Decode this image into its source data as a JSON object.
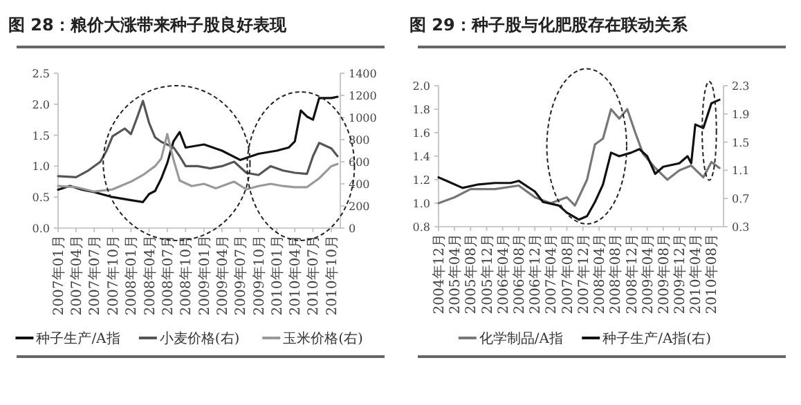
{
  "chart_data": [
    {
      "type": "line",
      "title": "图 28：粮价大涨带来种子股良好表现",
      "legend": "bottom",
      "grid": false,
      "xlim": [
        "2007-01-01",
        "2010-11-15"
      ],
      "xticks": [
        {
          "value": "2007-01",
          "label": "2007年01月"
        },
        {
          "value": "2007-04",
          "label": "2007年04月"
        },
        {
          "value": "2007-07",
          "label": "2007年07月"
        },
        {
          "value": "2007-10",
          "label": "2007年10月"
        },
        {
          "value": "2008-01",
          "label": "2008年01月"
        },
        {
          "value": "2008-04",
          "label": "2008年04月"
        },
        {
          "value": "2008-07",
          "label": "2008年07月"
        },
        {
          "value": "2008-10",
          "label": "2008年10月"
        },
        {
          "value": "2009-01",
          "label": "2009年01月"
        },
        {
          "value": "2009-04",
          "label": "2009年04月"
        },
        {
          "value": "2009-07",
          "label": "2009年07月"
        },
        {
          "value": "2009-10",
          "label": "2009年10月"
        },
        {
          "value": "2010-01",
          "label": "2010年01月"
        },
        {
          "value": "2010-04",
          "label": "2010年04月"
        },
        {
          "value": "2010-07",
          "label": "2010年07月"
        },
        {
          "value": "2010-10",
          "label": "2010年10月"
        }
      ],
      "ylim": [
        0,
        2.5
      ],
      "yticks": [
        {
          "value": 0,
          "label": "0.0"
        },
        {
          "value": 0.5,
          "label": "0.5"
        },
        {
          "value": 1,
          "label": "1.0"
        },
        {
          "value": 1.5,
          "label": "1.5"
        },
        {
          "value": 2,
          "label": "2.0"
        },
        {
          "value": 2.5,
          "label": "2.5"
        }
      ],
      "y2lim": [
        0,
        1400
      ],
      "y2ticks": [
        0,
        200,
        400,
        600,
        800,
        1000,
        1200,
        1400
      ],
      "series": [
        {
          "name": "种子生产/A指",
          "color": "#111111",
          "x": [
            "2007-01",
            "2007-03",
            "2007-05",
            "2007-07",
            "2007-10",
            "2008-01",
            "2008-03",
            "2008-04",
            "2008-05",
            "2008-06",
            "2008-07",
            "2008-08",
            "2008-09",
            "2008-10",
            "2009-01",
            "2009-04",
            "2009-07",
            "2009-10",
            "2010-01",
            "2010-03",
            "2010-04",
            "2010-05",
            "2010-06",
            "2010-07",
            "2010-08",
            "2010-10",
            "2010-11"
          ],
          "values": [
            0.62,
            0.68,
            0.62,
            0.58,
            0.5,
            0.45,
            0.42,
            0.55,
            0.6,
            0.8,
            1.05,
            1.4,
            1.55,
            1.3,
            1.35,
            1.25,
            1.1,
            1.2,
            1.25,
            1.3,
            1.4,
            1.9,
            1.8,
            1.75,
            2.1,
            2.1,
            2.12
          ]
        },
        {
          "name": "小麦价格(右)",
          "color": "#555555",
          "axis": "y2",
          "x": [
            "2007-01",
            "2007-04",
            "2007-06",
            "2007-08",
            "2007-09",
            "2007-10",
            "2007-12",
            "2008-01",
            "2008-02",
            "2008-03",
            "2008-04",
            "2008-05",
            "2008-06",
            "2008-08",
            "2008-09",
            "2008-10",
            "2008-12",
            "2009-02",
            "2009-04",
            "2009-06",
            "2009-08",
            "2009-10",
            "2009-12",
            "2010-02",
            "2010-04",
            "2010-06",
            "2010-07",
            "2010-08",
            "2010-10",
            "2010-11"
          ],
          "values": [
            470,
            460,
            520,
            600,
            700,
            830,
            900,
            850,
            1000,
            1150,
            950,
            820,
            780,
            730,
            650,
            560,
            560,
            540,
            560,
            600,
            500,
            480,
            560,
            520,
            500,
            490,
            650,
            770,
            720,
            650
          ]
        },
        {
          "name": "玉米价格(右)",
          "color": "#999999",
          "axis": "y2",
          "x": [
            "2007-01",
            "2007-04",
            "2007-07",
            "2007-10",
            "2008-01",
            "2008-03",
            "2008-05",
            "2008-06",
            "2008-07",
            "2008-08",
            "2008-09",
            "2008-11",
            "2009-01",
            "2009-03",
            "2009-06",
            "2009-08",
            "2009-10",
            "2009-12",
            "2010-02",
            "2010-04",
            "2010-06",
            "2010-08",
            "2010-10",
            "2010-11"
          ],
          "values": [
            380,
            370,
            330,
            350,
            420,
            480,
            560,
            630,
            850,
            620,
            430,
            380,
            400,
            360,
            420,
            350,
            380,
            400,
            380,
            370,
            370,
            450,
            560,
            580
          ]
        }
      ]
    },
    {
      "type": "line",
      "title": "图 29：种子股与化肥股存在联动关系",
      "legend": "bottom",
      "grid": false,
      "xlim": [
        "2004-12-01",
        "2010-11-01"
      ],
      "xticks": [
        {
          "value": "2004-12",
          "label": "2004年12月"
        },
        {
          "value": "2005-04",
          "label": "2005年04月"
        },
        {
          "value": "2005-08",
          "label": "2005年08月"
        },
        {
          "value": "2005-12",
          "label": "2005年12月"
        },
        {
          "value": "2006-04",
          "label": "2006年04月"
        },
        {
          "value": "2006-08",
          "label": "2006年08月"
        },
        {
          "value": "2006-12",
          "label": "2006年12月"
        },
        {
          "value": "2007-04",
          "label": "2007年04月"
        },
        {
          "value": "2007-08",
          "label": "2007年08月"
        },
        {
          "value": "2007-12",
          "label": "2007年12月"
        },
        {
          "value": "2008-04",
          "label": "2008年04月"
        },
        {
          "value": "2008-08",
          "label": "2008年08月"
        },
        {
          "value": "2008-12",
          "label": "2008年12月"
        },
        {
          "value": "2009-04",
          "label": "2009年04月"
        },
        {
          "value": "2009-08",
          "label": "2009年08月"
        },
        {
          "value": "2009-12",
          "label": "2009年12月"
        },
        {
          "value": "2010-04",
          "label": "2010年04月"
        },
        {
          "value": "2010-08",
          "label": "2010年08月"
        }
      ],
      "ylim": [
        0.8,
        2
      ],
      "yticks": [
        0.8,
        {
          "value": 1,
          "label": "1.0"
        },
        1.2,
        1.4,
        1.6,
        1.8,
        {
          "value": 2,
          "label": "2.0"
        }
      ],
      "y2lim": [
        0.3,
        2.3
      ],
      "y2ticks": [
        0.3,
        0.7,
        1.1,
        1.5,
        1.9,
        2.3
      ],
      "series": [
        {
          "name": "化学制品/A指",
          "color": "#777777",
          "x": [
            "2004-12",
            "2005-04",
            "2005-08",
            "2006-02",
            "2006-08",
            "2006-12",
            "2007-04",
            "2007-08",
            "2007-10",
            "2008-01",
            "2008-03",
            "2008-05",
            "2008-07",
            "2008-09",
            "2008-11",
            "2009-01",
            "2009-03",
            "2009-06",
            "2009-09",
            "2009-12",
            "2010-03",
            "2010-06",
            "2010-08",
            "2010-10"
          ],
          "values": [
            1.0,
            1.05,
            1.12,
            1.12,
            1.15,
            1.05,
            1.0,
            1.05,
            0.98,
            1.2,
            1.5,
            1.55,
            1.8,
            1.72,
            1.8,
            1.6,
            1.42,
            1.3,
            1.2,
            1.28,
            1.32,
            1.22,
            1.35,
            1.3
          ]
        },
        {
          "name": "种子生产/A指(右)",
          "color": "#111111",
          "axis": "y2",
          "x": [
            "2004-12",
            "2005-02",
            "2005-06",
            "2005-10",
            "2006-02",
            "2006-06",
            "2006-08",
            "2006-12",
            "2007-02",
            "2007-06",
            "2007-08",
            "2007-11",
            "2008-01",
            "2008-03",
            "2008-05",
            "2008-07",
            "2008-09",
            "2008-12",
            "2009-02",
            "2009-04",
            "2009-06",
            "2009-08",
            "2009-12",
            "2010-02",
            "2010-03",
            "2010-04",
            "2010-06",
            "2010-08",
            "2010-10"
          ],
          "values": [
            1.0,
            0.95,
            0.85,
            0.9,
            0.92,
            0.92,
            0.95,
            0.8,
            0.65,
            0.6,
            0.5,
            0.4,
            0.45,
            0.65,
            0.9,
            1.35,
            1.3,
            1.35,
            1.4,
            1.3,
            1.05,
            1.15,
            1.2,
            1.3,
            1.2,
            1.75,
            1.7,
            2.05,
            2.1
          ]
        }
      ]
    }
  ]
}
